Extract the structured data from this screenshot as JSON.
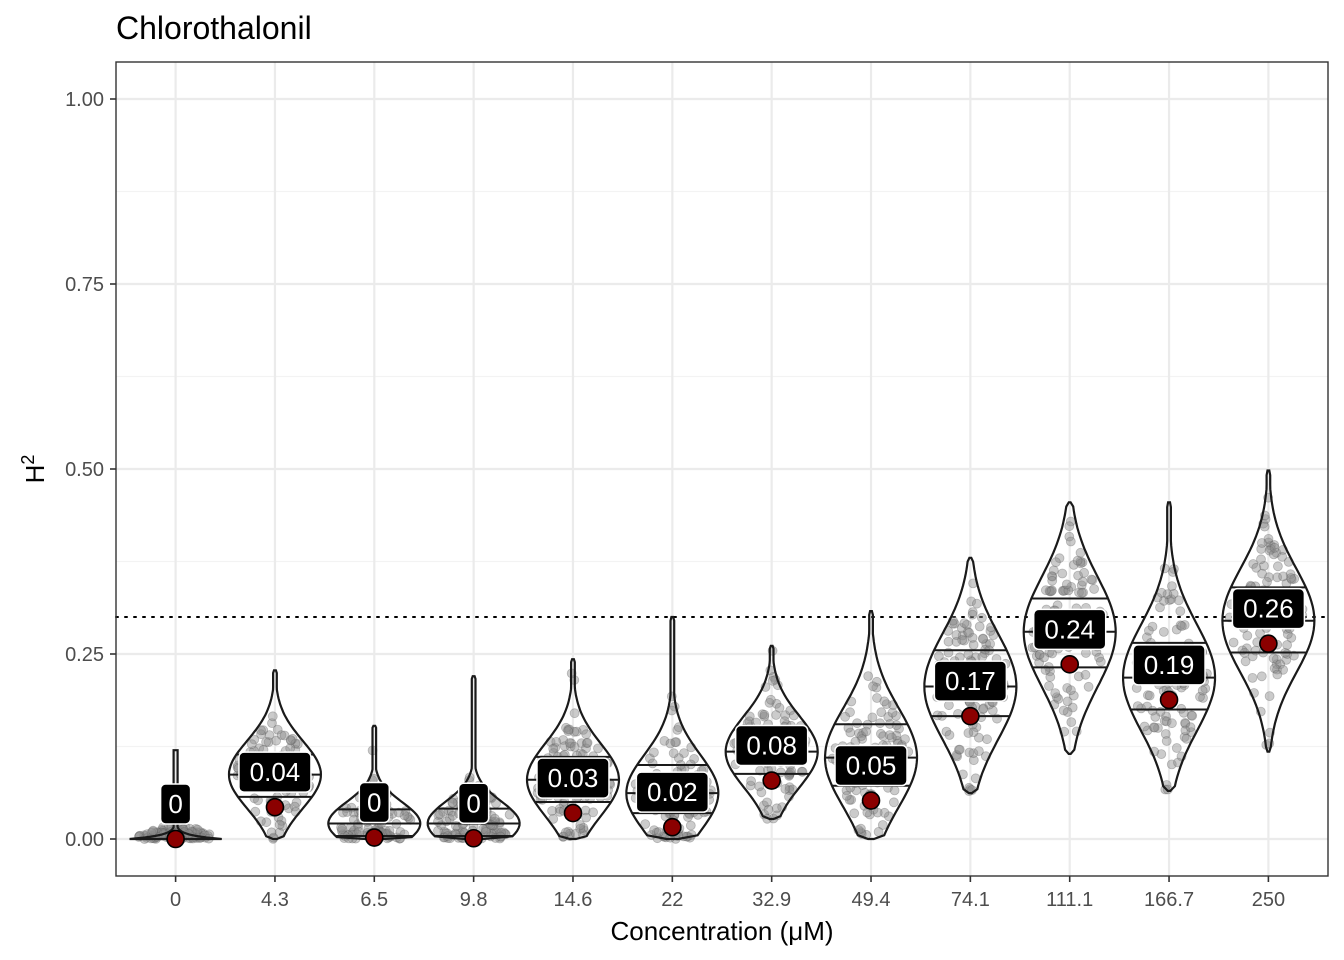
{
  "chart_data": {
    "type": "violin",
    "title": "Chlorothalonil",
    "xlabel": "Concentration (μM)",
    "ylabel": "H",
    "ylabel_superscript": "2",
    "ylim": [
      -0.05,
      1.05
    ],
    "yticks": [
      0.0,
      0.25,
      0.5,
      0.75,
      1.0
    ],
    "ytick_labels": [
      "0.00",
      "0.25",
      "0.50",
      "0.75",
      "1.00"
    ],
    "grid": true,
    "reference_line": 0.3,
    "categories": [
      "0",
      "4.3",
      "6.5",
      "9.8",
      "14.6",
      "22",
      "32.9",
      "49.4",
      "74.1",
      "111.1",
      "166.7",
      "250"
    ],
    "point_estimate": [
      0.0,
      0.043,
      0.002,
      0.001,
      0.035,
      0.016,
      0.079,
      0.052,
      0.166,
      0.236,
      0.188,
      0.264
    ],
    "labels": [
      "0",
      "0.04",
      "0",
      "0",
      "0.03",
      "0.02",
      "0.08",
      "0.05",
      "0.17",
      "0.24",
      "0.19",
      "0.26"
    ],
    "min": [
      0.0,
      0.0,
      0.0,
      0.0,
      0.0,
      0.0,
      0.027,
      0.0,
      0.062,
      0.115,
      0.065,
      0.118
    ],
    "max": [
      0.12,
      0.228,
      0.153,
      0.22,
      0.243,
      0.3,
      0.261,
      0.308,
      0.38,
      0.455,
      0.455,
      0.498
    ],
    "q1": [
      0.0,
      0.057,
      0.004,
      0.004,
      0.05,
      0.035,
      0.088,
      0.072,
      0.166,
      0.232,
      0.175,
      0.252
    ],
    "median": [
      0.0,
      0.087,
      0.021,
      0.021,
      0.08,
      0.062,
      0.118,
      0.11,
      0.206,
      0.28,
      0.218,
      0.295
    ],
    "q3": [
      0.0,
      0.114,
      0.04,
      0.041,
      0.111,
      0.1,
      0.148,
      0.155,
      0.255,
      0.325,
      0.265,
      0.34
    ],
    "violin_colors": {
      "outline": "#1a1a1a",
      "points": "#8c8c8c",
      "estimate": "#8b0000",
      "label_bg": "#000000"
    }
  }
}
